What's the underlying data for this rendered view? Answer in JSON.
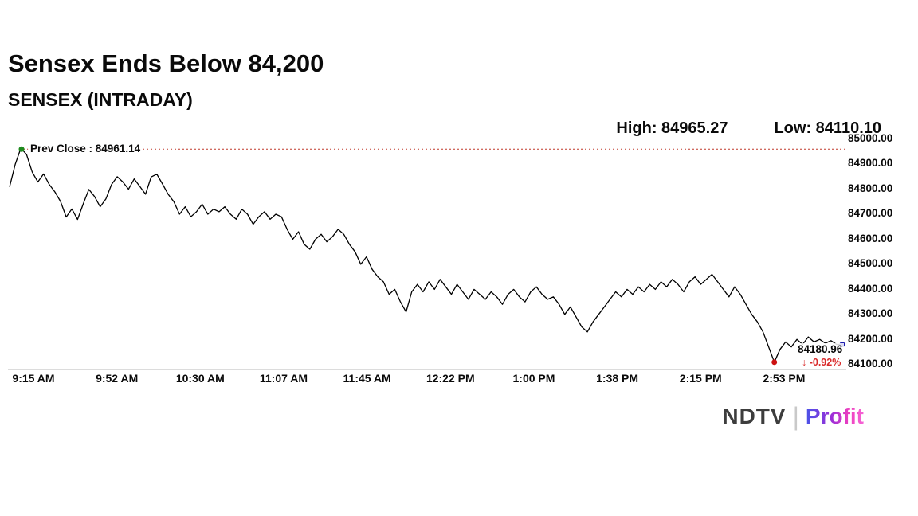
{
  "header": {
    "title": "Sensex Ends Below 84,200",
    "subtitle": "SENSEX (INTRADAY)"
  },
  "stats": {
    "high_label": "High: 84965.27",
    "low_label": "Low: 84110.10"
  },
  "prev_close": {
    "label": "Prev Close : 84961.14"
  },
  "last": {
    "value_label": "84180.96",
    "change_label": "↓ -0.92%"
  },
  "logo": {
    "ndtv": "NDTV",
    "separator": "|",
    "profit": "Profit"
  },
  "chart_data": {
    "type": "line",
    "title": "SENSEX (INTRADAY)",
    "x_ticks": [
      "9:15 AM",
      "9:52 AM",
      "10:30 AM",
      "11:07 AM",
      "11:45 AM",
      "12:22 PM",
      "1:00 PM",
      "1:38 PM",
      "2:15 PM",
      "2:53 PM"
    ],
    "y_ticks": [
      "85000.00",
      "84900.00",
      "84800.00",
      "84700.00",
      "84600.00",
      "84500.00",
      "84400.00",
      "84300.00",
      "84200.00",
      "84100.00"
    ],
    "ylim": [
      84100,
      85000
    ],
    "high": 84965.27,
    "low": 84110.1,
    "prev_close": 84961.14,
    "close": 84180.96,
    "change_pct": -0.92,
    "grid": false,
    "line_color": "#000000",
    "prev_close_color": "#c0392b",
    "marker_colors": {
      "start": "#1e8a1e",
      "low": "#cc1111",
      "end": "#1a1aae"
    },
    "series": [
      {
        "name": "SENSEX",
        "values": [
          84810,
          84900,
          84965.27,
          84940,
          84870,
          84830,
          84862,
          84820,
          84790,
          84752,
          84690,
          84722,
          84680,
          84742,
          84800,
          84772,
          84731,
          84762,
          84820,
          84851,
          84830,
          84801,
          84842,
          84812,
          84781,
          84850,
          84861,
          84822,
          84781,
          84751,
          84701,
          84731,
          84691,
          84711,
          84741,
          84701,
          84721,
          84711,
          84731,
          84701,
          84681,
          84721,
          84701,
          84661,
          84691,
          84711,
          84681,
          84701,
          84691,
          84641,
          84601,
          84631,
          84581,
          84561,
          84601,
          84621,
          84591,
          84611,
          84641,
          84621,
          84581,
          84551,
          84501,
          84531,
          84481,
          84451,
          84431,
          84381,
          84401,
          84351,
          84311,
          84391,
          84421,
          84391,
          84431,
          84401,
          84441,
          84411,
          84381,
          84421,
          84391,
          84361,
          84401,
          84381,
          84361,
          84391,
          84371,
          84341,
          84381,
          84401,
          84371,
          84351,
          84391,
          84411,
          84381,
          84361,
          84371,
          84341,
          84301,
          84331,
          84291,
          84251,
          84231,
          84271,
          84301,
          84331,
          84361,
          84391,
          84371,
          84401,
          84381,
          84411,
          84391,
          84421,
          84401,
          84431,
          84411,
          84441,
          84421,
          84391,
          84431,
          84451,
          84421,
          84441,
          84461,
          84431,
          84401,
          84371,
          84411,
          84381,
          84341,
          84301,
          84271,
          84231,
          84171,
          84110.1,
          84161,
          84191,
          84171,
          84201,
          84181,
          84211,
          84191,
          84201,
          84186,
          84196,
          84181,
          84180.96
        ]
      }
    ]
  }
}
